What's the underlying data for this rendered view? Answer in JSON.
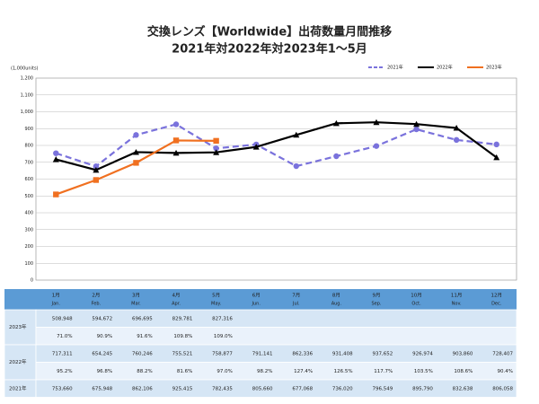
{
  "chart_data": {
    "type": "line",
    "title": "交換レンズ【Worldwide】出荷数量月間推移",
    "subtitle": "2021年対2022年対2023年1～5月",
    "y_label": "(1,000units)",
    "categories": [
      "1月",
      "2月",
      "3月",
      "4月",
      "5月",
      "6月",
      "7月",
      "8月",
      "9月",
      "10月",
      "11月",
      "12月"
    ],
    "categories_en": [
      "Jan.",
      "Feb.",
      "Mar.",
      "Apr.",
      "May.",
      "Jun.",
      "Jul.",
      "Aug.",
      "Sep.",
      "Oct.",
      "Nov.",
      "Dec."
    ],
    "ylim": [
      0,
      1200
    ],
    "yticks": [
      0,
      100,
      200,
      300,
      400,
      500,
      600,
      700,
      800,
      900,
      {
        "value": 1000,
        "label": "1,000"
      },
      {
        "value": 1100,
        "label": "1,100"
      },
      {
        "value": 1200,
        "label": "1,200"
      }
    ],
    "grid": true,
    "legend": "top-right",
    "series": [
      {
        "name": "2021年",
        "color": "#7a72dc",
        "dash": true,
        "marker": "circle",
        "values": [
          753.66,
          675.948,
          862.106,
          925.415,
          782.435,
          805.66,
          677.068,
          736.02,
          796.549,
          895.79,
          832.638,
          806.058
        ],
        "value_labels": [
          "753,660",
          "675,948",
          "862,106",
          "925,415",
          "782,435",
          "805,660",
          "677,068",
          "736,020",
          "796,549",
          "895,790",
          "832,638",
          "806,058"
        ]
      },
      {
        "name": "2022年",
        "color": "#000000",
        "dash": false,
        "marker": "triangle",
        "values": [
          717.311,
          654.245,
          760.246,
          755.521,
          758.877,
          791.141,
          862.336,
          931.408,
          937.652,
          926.974,
          903.86,
          728.407
        ],
        "value_labels": [
          "717,311",
          "654,245",
          "760,246",
          "755,521",
          "758,877",
          "791,141",
          "862,336",
          "931,408",
          "937,652",
          "926,974",
          "903,860",
          "728,407"
        ],
        "ratios": [
          "95.2%",
          "96.8%",
          "88.2%",
          "81.6%",
          "97.0%",
          "98.2%",
          "127.4%",
          "126.5%",
          "117.7%",
          "103.5%",
          "108.6%",
          "90.4%"
        ]
      },
      {
        "name": "2023年",
        "color": "#f07020",
        "dash": false,
        "marker": "square",
        "values": [
          508.948,
          594.672,
          696.695,
          829.781,
          827.316,
          null,
          null,
          null,
          null,
          null,
          null,
          null
        ],
        "value_labels": [
          "508,948",
          "594,672",
          "696,695",
          "829,781",
          "827,316",
          null,
          null,
          null,
          null,
          null,
          null,
          null
        ],
        "ratios": [
          "71.0%",
          "90.9%",
          "91.6%",
          "109.8%",
          "109.0%",
          null,
          null,
          null,
          null,
          null,
          null,
          null
        ]
      }
    ]
  }
}
